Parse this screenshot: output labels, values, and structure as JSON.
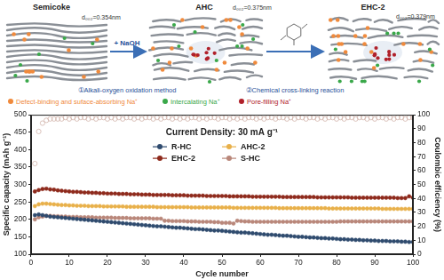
{
  "diagram": {
    "materials": [
      {
        "label": "Semicoke",
        "d002": "d₀₀₂=0.354nm"
      },
      {
        "label": "AHC",
        "d002": "d₀₀₂=0.375nm"
      },
      {
        "label": "EHC-2",
        "d002": "d₀₀₂=0.379nm"
      }
    ],
    "steps": [
      {
        "reagent": "+ NaOH",
        "label": "①Alkali-oxygen oxidation method"
      },
      {
        "label": "②Chemical cross-linking reaction"
      }
    ],
    "legend": [
      {
        "label": "Defect-binding and suface-absorbing Na⁺",
        "color": "#f08a3c"
      },
      {
        "label": "Intercalating Na⁺",
        "color": "#3aa84a"
      },
      {
        "label": "Pore-filling Na⁺",
        "color": "#b0202a"
      }
    ]
  },
  "chart_data": {
    "type": "line",
    "title": "Current Density: 30 mA g⁻¹",
    "x_label": "Cycle number",
    "y_label": "Specific capacity (mAh g⁻¹)",
    "y2_label": "Coulombic efficiency (%)",
    "x": [
      1,
      2,
      3,
      4,
      5,
      6,
      7,
      8,
      9,
      10,
      11,
      12,
      13,
      14,
      15,
      16,
      17,
      18,
      19,
      20,
      21,
      22,
      23,
      24,
      25,
      26,
      27,
      28,
      29,
      30,
      31,
      32,
      33,
      34,
      35,
      36,
      37,
      38,
      39,
      40,
      41,
      42,
      43,
      44,
      45,
      46,
      47,
      48,
      49,
      50,
      51,
      52,
      53,
      54,
      55,
      56,
      57,
      58,
      59,
      60,
      61,
      62,
      63,
      64,
      65,
      66,
      67,
      68,
      69,
      70,
      71,
      72,
      73,
      74,
      75,
      76,
      77,
      78,
      79,
      80,
      81,
      82,
      83,
      84,
      85,
      86,
      87,
      88,
      89,
      90,
      91,
      92,
      93,
      94,
      95,
      96,
      97,
      98,
      99,
      100
    ],
    "xlim": [
      0,
      100
    ],
    "xticks": [
      0,
      10,
      20,
      30,
      40,
      50,
      60,
      70,
      80,
      90,
      100
    ],
    "ylim": [
      100,
      500
    ],
    "yticks": [
      100,
      150,
      200,
      250,
      300,
      350,
      400,
      450,
      500
    ],
    "y2lim": [
      0,
      100
    ],
    "y2ticks": [
      0,
      10,
      20,
      30,
      40,
      50,
      60,
      70,
      80,
      90,
      100
    ],
    "grid": false,
    "legend": "top",
    "series": [
      {
        "name": "R-HC",
        "color": "#2f4b6e",
        "marker": "circle",
        "line_style": "solid",
        "values": [
          212,
          214,
          212,
          210,
          208,
          207,
          206,
          205,
          204,
          203,
          202,
          201,
          200,
          199,
          198,
          197,
          196,
          195,
          194,
          193,
          192,
          191,
          190,
          189,
          188,
          187,
          186,
          185,
          184,
          183,
          182,
          181,
          180,
          180,
          179,
          178,
          177,
          176,
          176,
          175,
          174,
          173,
          172,
          172,
          171,
          170,
          169,
          168,
          168,
          167,
          166,
          165,
          164,
          163,
          162,
          162,
          161,
          160,
          159,
          158,
          157,
          156,
          156,
          155,
          154,
          153,
          153,
          152,
          151,
          150,
          150,
          149,
          148,
          148,
          147,
          146,
          146,
          145,
          145,
          144,
          143,
          143,
          142,
          142,
          141,
          141,
          140,
          140,
          139,
          139,
          138,
          138,
          138,
          137,
          137,
          137,
          136,
          136,
          135,
          135
        ]
      },
      {
        "name": "AHC-2",
        "color": "#e8b04a",
        "marker": "circle",
        "line_style": "solid",
        "values": [
          238,
          243,
          245,
          245,
          244,
          243,
          242,
          241,
          241,
          240,
          240,
          239,
          239,
          239,
          238,
          238,
          238,
          238,
          237,
          237,
          237,
          237,
          237,
          237,
          236,
          236,
          236,
          236,
          236,
          236,
          236,
          236,
          235,
          235,
          235,
          235,
          235,
          235,
          235,
          235,
          235,
          234,
          234,
          234,
          234,
          234,
          234,
          234,
          234,
          234,
          234,
          234,
          233,
          233,
          233,
          233,
          233,
          233,
          233,
          233,
          233,
          233,
          233,
          233,
          232,
          232,
          232,
          232,
          232,
          232,
          232,
          232,
          232,
          232,
          232,
          232,
          232,
          231,
          231,
          231,
          231,
          231,
          231,
          231,
          231,
          231,
          231,
          231,
          231,
          231,
          231,
          230,
          230,
          230,
          230,
          230,
          230,
          230,
          230,
          230
        ]
      },
      {
        "name": "EHC-2",
        "color": "#8e2a1c",
        "marker": "circle",
        "line_style": "solid",
        "values": [
          280,
          284,
          287,
          288,
          286,
          285,
          283,
          282,
          281,
          280,
          279,
          279,
          278,
          277,
          277,
          276,
          276,
          275,
          275,
          274,
          274,
          274,
          273,
          273,
          273,
          272,
          272,
          272,
          271,
          271,
          271,
          270,
          270,
          270,
          270,
          270,
          269,
          269,
          269,
          269,
          268,
          268,
          268,
          268,
          268,
          267,
          267,
          267,
          267,
          267,
          267,
          266,
          266,
          266,
          266,
          266,
          266,
          265,
          265,
          265,
          265,
          265,
          265,
          265,
          265,
          264,
          264,
          264,
          264,
          264,
          264,
          264,
          264,
          264,
          263,
          263,
          263,
          263,
          263,
          263,
          263,
          263,
          263,
          262,
          262,
          262,
          262,
          262,
          262,
          262,
          262,
          262,
          262,
          262,
          262,
          261,
          261,
          261,
          266,
          262
        ]
      },
      {
        "name": "S-HC",
        "color": "#b9877a",
        "marker": "circle",
        "line_style": "solid",
        "values": [
          200,
          206,
          208,
          210,
          210,
          209,
          209,
          208,
          208,
          207,
          207,
          207,
          206,
          206,
          206,
          206,
          205,
          205,
          205,
          205,
          205,
          204,
          204,
          204,
          204,
          203,
          203,
          203,
          203,
          203,
          203,
          202,
          202,
          202,
          196,
          196,
          195,
          195,
          195,
          195,
          194,
          194,
          194,
          193,
          193,
          193,
          193,
          192,
          192,
          190,
          190,
          190,
          188,
          196,
          195,
          194,
          194,
          193,
          193,
          193,
          193,
          193,
          193,
          193,
          193,
          193,
          193,
          193,
          193,
          193,
          193,
          193,
          193,
          193,
          193,
          193,
          193,
          193,
          193,
          193,
          194,
          194,
          194,
          194,
          194,
          194,
          194,
          194,
          194,
          194,
          194,
          194,
          194,
          194,
          194,
          194,
          194,
          194,
          194,
          194
        ]
      },
      {
        "color": "#d2b4ab",
        "marker": "open_circle",
        "line_style": "none",
        "axis": "y2",
        "values": [
          65,
          88,
          94,
          96,
          97,
          97,
          97,
          97,
          98,
          97,
          98,
          97,
          98,
          98,
          97,
          98,
          97,
          98,
          98,
          97,
          98,
          97,
          98,
          97,
          98,
          98,
          97,
          98,
          97,
          98,
          98,
          97,
          98,
          97,
          98,
          98,
          97,
          98,
          97,
          98,
          97,
          98,
          98,
          97,
          98,
          97,
          98,
          98,
          97,
          98,
          98,
          97,
          98,
          97,
          98,
          97,
          98,
          98,
          97,
          98,
          97,
          98,
          98,
          97,
          98,
          98,
          97,
          98,
          97,
          98,
          98,
          97,
          98,
          98,
          97,
          98,
          97,
          98,
          98,
          97,
          98,
          97,
          98,
          98,
          97,
          98,
          98,
          97,
          98,
          97,
          98,
          98,
          97,
          98,
          97,
          98,
          98,
          97,
          98,
          98
        ]
      }
    ]
  }
}
